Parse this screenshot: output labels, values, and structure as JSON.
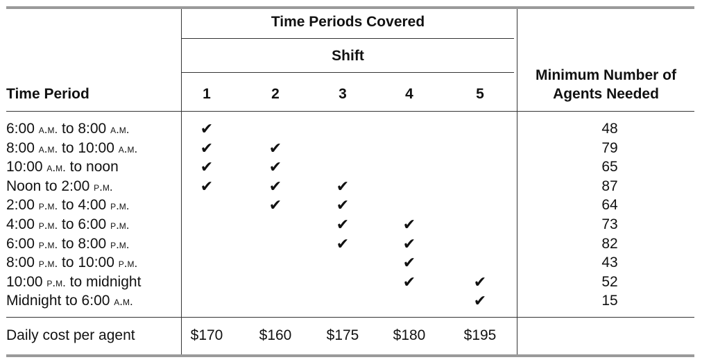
{
  "header": {
    "group_title": "Time Periods Covered",
    "shift_label": "Shift",
    "time_period_label": "Time Period",
    "shift_numbers": [
      "1",
      "2",
      "3",
      "4",
      "5"
    ],
    "min_agents_label_line1": "Minimum Number of",
    "min_agents_label_line2": "Agents Needed"
  },
  "check_glyph": "✔",
  "rows": [
    {
      "period": "6:00 A.M. to 8:00 A.M.",
      "p1": "6:00 ",
      "s1": "a.m.",
      "m": " to 8:00 ",
      "s2": "a.m.",
      "t": "",
      "checks": [
        true,
        false,
        false,
        false,
        false
      ],
      "min": "48"
    },
    {
      "period": "8:00 A.M. to 10:00 A.M.",
      "p1": "8:00 ",
      "s1": "a.m.",
      "m": " to 10:00 ",
      "s2": "a.m.",
      "t": "",
      "checks": [
        true,
        true,
        false,
        false,
        false
      ],
      "min": "79"
    },
    {
      "period": "10:00 A.M. to noon",
      "p1": "10:00 ",
      "s1": "a.m.",
      "m": " to noon",
      "s2": "",
      "t": "",
      "checks": [
        true,
        true,
        false,
        false,
        false
      ],
      "min": "65"
    },
    {
      "period": "Noon to 2:00 P.M.",
      "p1": "Noon to 2:00 ",
      "s1": "p.m.",
      "m": "",
      "s2": "",
      "t": "",
      "checks": [
        true,
        true,
        true,
        false,
        false
      ],
      "min": "87"
    },
    {
      "period": "2:00 P.M. to 4:00 P.M.",
      "p1": "2:00 ",
      "s1": "p.m.",
      "m": " to 4:00 ",
      "s2": "p.m.",
      "t": "",
      "checks": [
        false,
        true,
        true,
        false,
        false
      ],
      "min": "64"
    },
    {
      "period": "4:00 P.M. to 6:00 P.M.",
      "p1": "4:00 ",
      "s1": "p.m.",
      "m": " to 6:00 ",
      "s2": "p.m.",
      "t": "",
      "checks": [
        false,
        false,
        true,
        true,
        false
      ],
      "min": "73"
    },
    {
      "period": "6:00 P.M. to 8:00 P.M.",
      "p1": "6:00 ",
      "s1": "p.m.",
      "m": " to 8:00 ",
      "s2": "p.m.",
      "t": "",
      "checks": [
        false,
        false,
        true,
        true,
        false
      ],
      "min": "82"
    },
    {
      "period": "8:00 P.M. to 10:00 P.M.",
      "p1": "8:00 ",
      "s1": "p.m.",
      "m": " to 10:00 ",
      "s2": "p.m.",
      "t": "",
      "checks": [
        false,
        false,
        false,
        true,
        false
      ],
      "min": "43"
    },
    {
      "period": "10:00 P.M. to midnight",
      "p1": "10:00 ",
      "s1": "p.m.",
      "m": " to midnight",
      "s2": "",
      "t": "",
      "checks": [
        false,
        false,
        false,
        true,
        true
      ],
      "min": "52"
    },
    {
      "period": "Midnight to 6:00 A.M.",
      "p1": "Midnight to 6:00 ",
      "s1": "a.m.",
      "m": "",
      "s2": "",
      "t": "",
      "checks": [
        false,
        false,
        false,
        false,
        true
      ],
      "min": "15"
    }
  ],
  "cost_row": {
    "label": "Daily cost per agent",
    "values": [
      "$170",
      "$160",
      "$175",
      "$180",
      "$195"
    ]
  }
}
